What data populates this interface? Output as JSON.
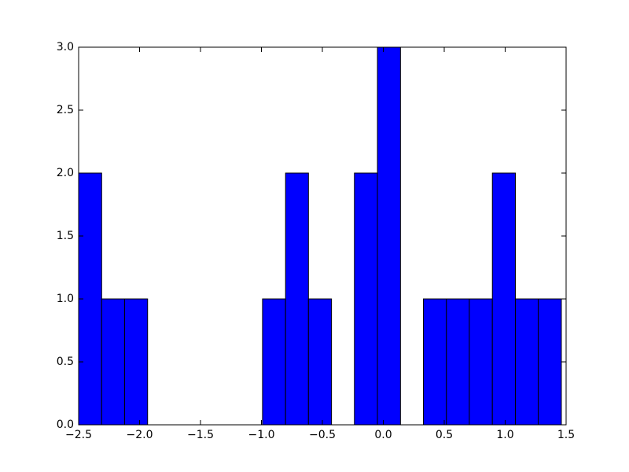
{
  "chart_data": {
    "type": "histogram",
    "bins": [
      -2.5,
      -2.311,
      -2.123,
      -1.934,
      -1.746,
      -1.557,
      -1.368,
      -1.18,
      -0.991,
      -0.802,
      -0.614,
      -0.425,
      -0.237,
      -0.048,
      0.141,
      0.329,
      0.518,
      0.706,
      0.895,
      1.084,
      1.272,
      1.461
    ],
    "counts": [
      2,
      1,
      1,
      0,
      0,
      0,
      0,
      0,
      1,
      2,
      1,
      0,
      2,
      3,
      0,
      1,
      1,
      1,
      2,
      1,
      1
    ],
    "color": "#0000ff",
    "xlim": [
      -2.5,
      1.5
    ],
    "xticks": [
      {
        "value": -2.5,
        "label": "−2.5"
      },
      {
        "value": -2.0,
        "label": "−2.0"
      },
      {
        "value": -1.5,
        "label": "−1.5"
      },
      {
        "value": -1.0,
        "label": "−1.0"
      },
      {
        "value": -0.5,
        "label": "−0.5"
      },
      {
        "value": 0,
        "label": "0.0"
      },
      0.5,
      {
        "value": 1,
        "label": "1.0"
      },
      1.5
    ],
    "ylim": [
      0,
      3
    ],
    "yticks": [
      {
        "value": 0,
        "label": "0.0"
      },
      0.5,
      {
        "value": 1,
        "label": "1.0"
      },
      1.5,
      {
        "value": 2,
        "label": "2.0"
      },
      2.5,
      {
        "value": 3,
        "label": "3.0"
      }
    ],
    "grid": false
  }
}
